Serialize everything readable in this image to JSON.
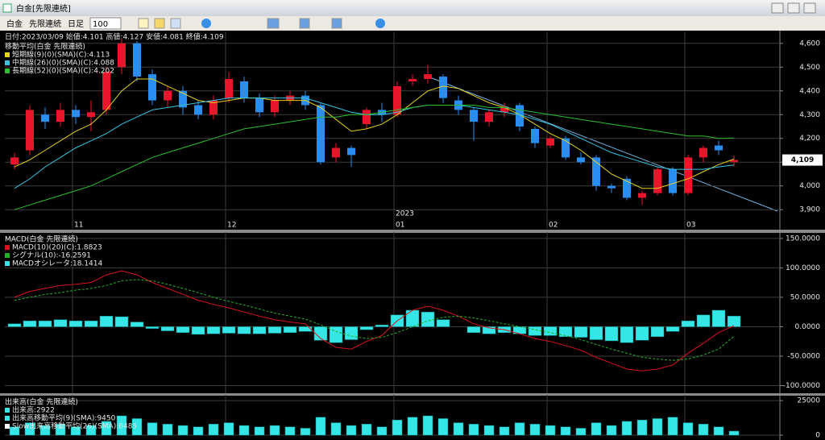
{
  "window": {
    "title": "白金[先限連続]"
  },
  "toolbar": {
    "symbol": "白金",
    "contract": "先限連続",
    "period": "日足",
    "bars": "100"
  },
  "chart_data": [
    {
      "type": "candlestick",
      "subtitle": "日付:2023/03/09 始値:4.101 高値:4.127 安値:4.081 終値:4.109",
      "legend_title": "移動平均(白金 先限連続)",
      "categories": [
        null,
        null,
        null,
        null,
        "11",
        null,
        null,
        null,
        null,
        null,
        null,
        null,
        null,
        null,
        "12",
        null,
        null,
        null,
        null,
        null,
        null,
        null,
        null,
        null,
        null,
        "01",
        null,
        null,
        null,
        null,
        null,
        null,
        null,
        null,
        null,
        "02",
        null,
        null,
        null,
        null,
        null,
        null,
        null,
        null,
        "03",
        null,
        null,
        null
      ],
      "annotation": "2023",
      "price_label": "4,109",
      "up_color": "#e8162a",
      "down_color": "#2a8ef0",
      "open": [
        4090,
        4150,
        4300,
        4270,
        4320,
        4290,
        4320,
        4500,
        4600,
        4470,
        4360,
        4400,
        4340,
        4300,
        4370,
        4440,
        4370,
        4310,
        4360,
        4380,
        4340,
        4120,
        4160,
        4260,
        4320,
        4300,
        4440,
        4450,
        4460,
        4360,
        4320,
        4270,
        4310,
        4340,
        4240,
        4170,
        4200,
        4120,
        4120,
        4000,
        4030,
        3950,
        3970,
        4070,
        3970,
        4120,
        4170,
        4101
      ],
      "high": [
        4140,
        4340,
        4330,
        4350,
        4340,
        4360,
        4500,
        4620,
        4610,
        4490,
        4420,
        4420,
        4360,
        4380,
        4480,
        4460,
        4390,
        4380,
        4400,
        4400,
        4350,
        4180,
        4170,
        4330,
        4350,
        4440,
        4470,
        4510,
        4470,
        4380,
        4330,
        4320,
        4350,
        4350,
        4250,
        4210,
        4210,
        4140,
        4130,
        4010,
        4040,
        3980,
        4080,
        4080,
        4130,
        4170,
        4190,
        4127
      ],
      "low": [
        4070,
        4130,
        4240,
        4250,
        4260,
        4230,
        4300,
        4470,
        4440,
        4340,
        4330,
        4300,
        4280,
        4280,
        4350,
        4350,
        4290,
        4290,
        4340,
        4320,
        4090,
        4100,
        4080,
        4240,
        4270,
        4290,
        4420,
        4430,
        4350,
        4300,
        4190,
        4250,
        4290,
        4230,
        4160,
        4160,
        4110,
        4090,
        3980,
        3970,
        3940,
        3920,
        3960,
        3960,
        3960,
        4100,
        4130,
        4081
      ],
      "close": [
        4120,
        4320,
        4270,
        4320,
        4290,
        4310,
        4480,
        4600,
        4460,
        4360,
        4400,
        4330,
        4300,
        4360,
        4450,
        4370,
        4310,
        4360,
        4380,
        4340,
        4100,
        4160,
        4130,
        4320,
        4300,
        4420,
        4450,
        4470,
        4370,
        4320,
        4270,
        4310,
        4330,
        4250,
        4180,
        4200,
        4120,
        4100,
        4000,
        3990,
        3950,
        3970,
        4070,
        3970,
        4120,
        4160,
        4150,
        4109
      ],
      "series": [
        {
          "name": "短期線(9)(0)(SMA)(C):4.113",
          "color": "#e6d21c",
          "values": [
            4080,
            4110,
            4150,
            4190,
            4230,
            4260,
            4320,
            4400,
            4450,
            4450,
            4420,
            4390,
            4360,
            4350,
            4360,
            4370,
            4370,
            4360,
            4360,
            4360,
            4330,
            4280,
            4230,
            4240,
            4260,
            4300,
            4350,
            4400,
            4420,
            4410,
            4380,
            4350,
            4330,
            4300,
            4260,
            4220,
            4190,
            4150,
            4100,
            4050,
            4020,
            3990,
            3990,
            4010,
            4030,
            4060,
            4090,
            4113
          ]
        },
        {
          "name": "中期線(26)(0)(SMA)(C):4.088",
          "color": "#36c4e4",
          "values": [
            3990,
            4030,
            4080,
            4120,
            4160,
            4190,
            4220,
            4260,
            4290,
            4320,
            4330,
            4340,
            4350,
            4360,
            4370,
            4370,
            4370,
            4370,
            4370,
            4370,
            4350,
            4330,
            4310,
            4300,
            4300,
            4310,
            4330,
            4340,
            4340,
            4340,
            4330,
            4320,
            4310,
            4300,
            4280,
            4260,
            4230,
            4200,
            4170,
            4140,
            4120,
            4100,
            4080,
            4070,
            4070,
            4070,
            4080,
            4088
          ]
        },
        {
          "name": "長期線(52)(0)(SMA)(C):4.202",
          "color": "#2cbf2c",
          "values": [
            3900,
            3920,
            3940,
            3960,
            3980,
            4000,
            4030,
            4060,
            4090,
            4120,
            4140,
            4160,
            4180,
            4200,
            4220,
            4240,
            4250,
            4260,
            4270,
            4280,
            4290,
            4290,
            4300,
            4300,
            4310,
            4320,
            4330,
            4340,
            4340,
            4340,
            4340,
            4330,
            4330,
            4320,
            4310,
            4300,
            4290,
            4280,
            4270,
            4260,
            4250,
            4240,
            4230,
            4220,
            4210,
            4210,
            4200,
            4202
          ]
        }
      ],
      "ylim": [
        3860,
        4640
      ],
      "yticks": [
        {
          "value": 3900,
          "label": "3,900"
        },
        {
          "value": 4000,
          "label": "4,000"
        },
        {
          "value": 4100,
          "label": "4,100"
        },
        {
          "value": 4200,
          "label": "4,200"
        },
        {
          "value": 4300,
          "label": "4,300"
        },
        {
          "value": 4400,
          "label": "4,400"
        },
        {
          "value": 4500,
          "label": "4,500"
        },
        {
          "value": 4600,
          "label": "4,600"
        }
      ],
      "grid": true
    },
    {
      "type": "combo",
      "legend_title": "MACD(白金 先限連続)",
      "series": [
        {
          "name": "MACD(10)(20)(C):1.8823",
          "color": "#d8141a",
          "style": "line",
          "values": [
            50,
            60,
            65,
            70,
            72,
            75,
            88,
            95,
            88,
            75,
            65,
            55,
            45,
            38,
            32,
            25,
            18,
            12,
            8,
            5,
            -20,
            -35,
            -38,
            -25,
            -15,
            10,
            28,
            35,
            28,
            18,
            5,
            -2,
            -5,
            -12,
            -20,
            -25,
            -32,
            -40,
            -52,
            -62,
            -72,
            -75,
            -72,
            -65,
            -45,
            -28,
            -10,
            1.8823
          ]
        },
        {
          "name": "シグナル(10):-16.2591",
          "color": "#24b024",
          "style": "dashed",
          "values": [
            45,
            50,
            55,
            58,
            62,
            65,
            70,
            78,
            80,
            78,
            72,
            65,
            58,
            50,
            43,
            37,
            30,
            23,
            18,
            13,
            3,
            -8,
            -16,
            -20,
            -18,
            -10,
            0,
            10,
            16,
            18,
            15,
            10,
            5,
            0,
            -5,
            -10,
            -15,
            -22,
            -30,
            -38,
            -45,
            -52,
            -55,
            -57,
            -55,
            -48,
            -38,
            -16.2591
          ]
        },
        {
          "name": "MACDオシレータ:18.1414",
          "color": "#34e6e6",
          "style": "bar",
          "values": [
            5,
            10,
            10,
            12,
            10,
            10,
            18,
            17,
            8,
            -3,
            -7,
            -10,
            -13,
            -12,
            -11,
            -12,
            -12,
            -11,
            -10,
            -8,
            -23,
            -27,
            -22,
            -5,
            3,
            20,
            28,
            25,
            12,
            0,
            -10,
            -12,
            -10,
            -12,
            -15,
            -15,
            -17,
            -18,
            -22,
            -24,
            -27,
            -23,
            -17,
            -8,
            10,
            20,
            28,
            18.1414
          ]
        }
      ],
      "ylim": [
        -113,
        158
      ],
      "yticks": [
        {
          "value": -100,
          "label": "-100.0000"
        },
        {
          "value": -50,
          "label": "-50.0000"
        },
        {
          "value": 0,
          "label": "0.0000"
        },
        {
          "value": 50,
          "label": "50.0000"
        },
        {
          "value": 100,
          "label": "100.0000"
        },
        {
          "value": 150,
          "label": "150.0000"
        }
      ],
      "grid": true
    },
    {
      "type": "bar",
      "legend_title": "出来高(白金 先限連続)",
      "series": [
        {
          "name": "出来高:2922",
          "color": "#34e6e6",
          "values": [
            6000,
            9000,
            7000,
            8000,
            6000,
            7000,
            10000,
            14000,
            12000,
            9000,
            8000,
            7000,
            6000,
            8000,
            9000,
            7000,
            6000,
            7000,
            6000,
            5000,
            13000,
            9000,
            7000,
            8000,
            6000,
            11000,
            13000,
            14000,
            12000,
            9000,
            8000,
            7000,
            6000,
            9000,
            8000,
            7000,
            6000,
            5000,
            9000,
            7000,
            10000,
            11000,
            12000,
            13000,
            9000,
            8000,
            6000,
            2922
          ]
        },
        {
          "name": "出来高移動平均(9)(SMA):9450",
          "color": "#34e6e6"
        },
        {
          "name": "Slow出来高移動平均(26)(SMA):8485",
          "color": "#ffffff"
        }
      ],
      "ylim": [
        0,
        28000
      ],
      "yticks": [
        0,
        25000
      ],
      "grid": true
    }
  ]
}
